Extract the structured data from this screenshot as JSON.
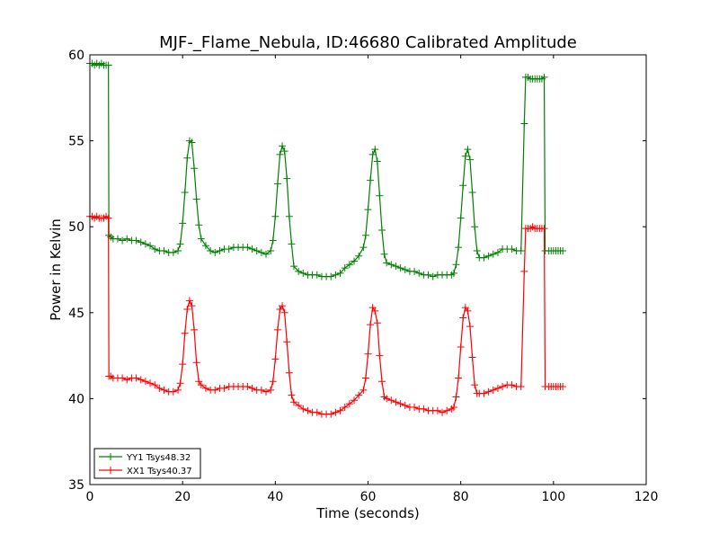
{
  "chart_data": {
    "type": "line",
    "title": "MJF-_Flame_Nebula, ID:46680 Calibrated Amplitude",
    "xlabel": "Time (seconds)",
    "ylabel": "Power in Kelvin",
    "xlim": [
      0,
      120
    ],
    "ylim": [
      35,
      60
    ],
    "xticks": [
      0,
      20,
      40,
      60,
      80,
      100,
      120
    ],
    "yticks": [
      35,
      40,
      45,
      50,
      55,
      60
    ],
    "grid": false,
    "legend_position": "lower-left",
    "series": [
      {
        "name": "YY1 Tsys48.32",
        "color": "#008000",
        "marker": "+",
        "x": [
          0.0,
          0.5,
          1.0,
          1.5,
          2.0,
          2.5,
          3.0,
          3.5,
          4.0,
          4.1,
          4.5,
          5.0,
          6.0,
          7.0,
          8.0,
          9.0,
          10.0,
          11.0,
          12.0,
          13.0,
          14.0,
          15.0,
          16.0,
          17.0,
          18.0,
          19.0,
          19.5,
          20.0,
          20.5,
          21.0,
          21.5,
          22.0,
          22.5,
          23.0,
          23.5,
          24.0,
          25.0,
          26.0,
          27.0,
          28.0,
          29.0,
          30.0,
          31.0,
          32.0,
          33.0,
          34.0,
          35.0,
          36.0,
          37.0,
          38.0,
          39.0,
          39.5,
          40.0,
          40.5,
          41.0,
          41.5,
          42.0,
          42.5,
          43.0,
          43.5,
          44.0,
          45.0,
          46.0,
          47.0,
          48.0,
          49.0,
          50.0,
          51.0,
          52.0,
          53.0,
          54.0,
          55.0,
          56.0,
          57.0,
          58.0,
          59.0,
          59.5,
          60.0,
          60.5,
          61.0,
          61.5,
          62.0,
          62.5,
          63.0,
          63.5,
          64.0,
          65.0,
          66.0,
          67.0,
          68.0,
          69.0,
          70.0,
          71.0,
          72.0,
          73.0,
          74.0,
          75.0,
          76.0,
          77.0,
          78.0,
          78.5,
          79.0,
          79.5,
          80.0,
          80.5,
          81.0,
          81.5,
          82.0,
          82.5,
          83.0,
          83.5,
          84.0,
          85.0,
          86.0,
          87.0,
          88.0,
          89.0,
          90.0,
          91.0,
          92.0,
          93.0,
          93.7,
          94.0,
          94.5,
          95.0,
          95.5,
          96.0,
          96.5,
          97.0,
          97.5,
          98.0,
          98.2,
          99.0,
          99.5,
          100.0,
          100.5,
          101.0,
          101.5,
          102.0
        ],
        "y": [
          59.5,
          59.5,
          59.4,
          59.5,
          59.4,
          59.5,
          59.4,
          59.4,
          59.4,
          49.5,
          49.4,
          49.3,
          49.3,
          49.2,
          49.3,
          49.2,
          49.2,
          49.1,
          49.0,
          48.9,
          48.7,
          48.6,
          48.6,
          48.5,
          48.5,
          48.6,
          49.0,
          50.2,
          52.0,
          54.0,
          55.0,
          54.9,
          53.4,
          51.6,
          50.1,
          49.3,
          48.9,
          48.6,
          48.5,
          48.6,
          48.7,
          48.7,
          48.8,
          48.8,
          48.8,
          48.8,
          48.7,
          48.6,
          48.5,
          48.4,
          48.6,
          49.2,
          50.6,
          52.5,
          54.2,
          54.7,
          54.4,
          52.8,
          50.6,
          49.0,
          47.7,
          47.4,
          47.3,
          47.2,
          47.2,
          47.2,
          47.1,
          47.1,
          47.1,
          47.2,
          47.3,
          47.6,
          47.8,
          48.0,
          48.3,
          48.8,
          49.5,
          51.0,
          52.7,
          54.2,
          54.5,
          53.8,
          51.8,
          49.8,
          48.4,
          47.9,
          47.8,
          47.7,
          47.6,
          47.5,
          47.4,
          47.4,
          47.3,
          47.2,
          47.2,
          47.1,
          47.2,
          47.2,
          47.2,
          47.2,
          47.3,
          47.8,
          48.8,
          50.5,
          52.4,
          54.1,
          54.5,
          53.9,
          52.0,
          50.0,
          48.6,
          48.2,
          48.2,
          48.3,
          48.4,
          48.5,
          48.7,
          48.7,
          48.7,
          48.6,
          48.6,
          56.0,
          58.7,
          58.7,
          58.6,
          58.6,
          58.6,
          58.6,
          58.6,
          58.6,
          58.7,
          48.6,
          48.6,
          48.6,
          48.6,
          48.6,
          48.6,
          48.6,
          48.6
        ]
      },
      {
        "name": "XX1 Tsys40.37",
        "color": "#ff0000",
        "marker": "+",
        "x": [
          0.0,
          0.5,
          1.0,
          1.5,
          2.0,
          2.5,
          3.0,
          3.5,
          4.0,
          4.1,
          4.5,
          5.0,
          6.0,
          7.0,
          8.0,
          9.0,
          10.0,
          11.0,
          12.0,
          13.0,
          14.0,
          15.0,
          16.0,
          17.0,
          18.0,
          19.0,
          19.5,
          20.0,
          20.5,
          21.0,
          21.5,
          22.0,
          22.5,
          23.0,
          23.5,
          24.0,
          25.0,
          26.0,
          27.0,
          28.0,
          29.0,
          30.0,
          31.0,
          32.0,
          33.0,
          34.0,
          35.0,
          36.0,
          37.0,
          38.0,
          39.0,
          39.5,
          40.0,
          40.5,
          41.0,
          41.5,
          42.0,
          42.5,
          43.0,
          43.5,
          44.0,
          45.0,
          46.0,
          47.0,
          48.0,
          49.0,
          50.0,
          51.0,
          52.0,
          53.0,
          54.0,
          55.0,
          56.0,
          57.0,
          58.0,
          59.0,
          59.5,
          60.0,
          60.5,
          61.0,
          61.5,
          62.0,
          62.5,
          63.0,
          63.5,
          64.0,
          65.0,
          66.0,
          67.0,
          68.0,
          69.0,
          70.0,
          71.0,
          72.0,
          73.0,
          74.0,
          75.0,
          76.0,
          77.0,
          78.0,
          78.5,
          79.0,
          79.5,
          80.0,
          80.5,
          81.0,
          81.5,
          82.0,
          82.5,
          83.0,
          83.5,
          84.0,
          85.0,
          86.0,
          87.0,
          88.0,
          89.0,
          90.0,
          91.0,
          92.0,
          93.0,
          93.7,
          94.0,
          94.5,
          95.0,
          95.5,
          96.0,
          96.5,
          97.0,
          97.5,
          98.0,
          98.2,
          99.0,
          99.5,
          100.0,
          100.5,
          101.0,
          101.5,
          102.0
        ],
        "y": [
          50.6,
          50.6,
          50.5,
          50.6,
          50.5,
          50.5,
          50.5,
          50.6,
          50.5,
          41.3,
          41.3,
          41.2,
          41.2,
          41.2,
          41.1,
          41.2,
          41.2,
          41.1,
          41.0,
          40.9,
          40.8,
          40.6,
          40.5,
          40.4,
          40.4,
          40.5,
          40.9,
          42.0,
          43.8,
          45.2,
          45.7,
          45.4,
          44.0,
          42.1,
          41.0,
          40.8,
          40.6,
          40.5,
          40.5,
          40.6,
          40.6,
          40.7,
          40.7,
          40.7,
          40.7,
          40.7,
          40.6,
          40.5,
          40.5,
          40.4,
          40.5,
          41.0,
          42.3,
          44.0,
          45.2,
          45.4,
          45.0,
          43.3,
          41.5,
          40.2,
          39.8,
          39.6,
          39.4,
          39.3,
          39.2,
          39.2,
          39.1,
          39.1,
          39.1,
          39.2,
          39.3,
          39.5,
          39.7,
          39.9,
          40.2,
          40.5,
          41.2,
          42.6,
          44.3,
          45.3,
          45.1,
          44.4,
          42.5,
          41.0,
          40.1,
          40.0,
          39.9,
          39.8,
          39.7,
          39.6,
          39.5,
          39.5,
          39.4,
          39.4,
          39.3,
          39.3,
          39.3,
          39.2,
          39.3,
          39.4,
          39.5,
          40.1,
          41.2,
          43.0,
          44.7,
          45.3,
          45.1,
          44.2,
          42.4,
          40.8,
          40.3,
          40.3,
          40.3,
          40.4,
          40.5,
          40.6,
          40.7,
          40.8,
          40.8,
          40.7,
          40.7,
          47.4,
          49.9,
          49.9,
          49.9,
          50.0,
          49.9,
          49.9,
          49.9,
          49.9,
          49.9,
          40.7,
          40.7,
          40.7,
          40.7,
          40.7,
          40.7,
          40.7,
          40.7
        ]
      }
    ]
  }
}
